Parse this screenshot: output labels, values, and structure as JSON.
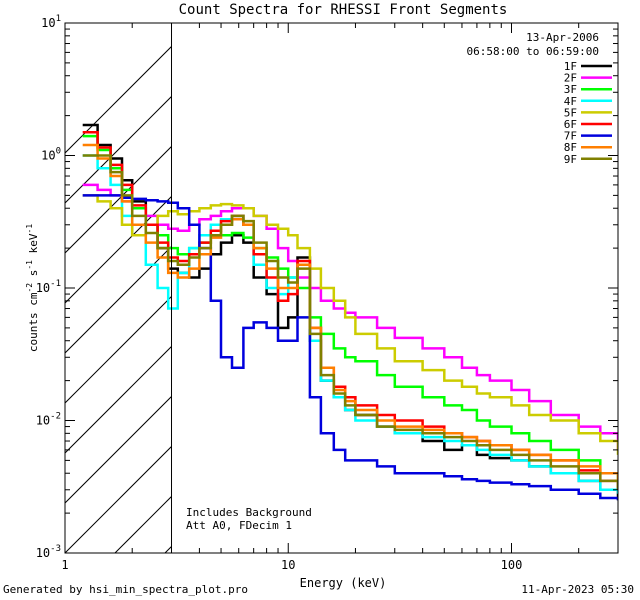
{
  "chart_data": {
    "type": "line",
    "step": true,
    "title": "Count Spectra for RHESSI Front Segments",
    "xlabel": "Energy (keV)",
    "ylabel_parts": [
      "counts cm",
      "-2",
      " s",
      "-1",
      " keV",
      "-1"
    ],
    "xscale": "log",
    "yscale": "log",
    "xlim": [
      1,
      300
    ],
    "ylim": [
      0.001,
      10
    ],
    "x_ticks": [
      {
        "value": 1,
        "label": "1"
      },
      {
        "value": 10,
        "label": "10"
      },
      {
        "value": 100,
        "label": "100"
      }
    ],
    "y_ticks": [
      {
        "value": 0.001,
        "base": "10",
        "exp": "-3"
      },
      {
        "value": 0.01,
        "base": "10",
        "exp": "-2"
      },
      {
        "value": 0.1,
        "base": "10",
        "exp": "-1"
      },
      {
        "value": 1,
        "base": "10",
        "exp": "0"
      },
      {
        "value": 10,
        "base": "10",
        "exp": "1"
      }
    ],
    "date": "13-Apr-2006",
    "time_range": "06:58:00 to 06:59:00",
    "excluded_region_kev": [
      1,
      3
    ],
    "annotations": [
      "Includes Background",
      "Att A0, FDecim 1"
    ],
    "series": [
      {
        "name": "1F",
        "color": "#000000",
        "x": [
          1.2,
          1.4,
          1.6,
          1.8,
          2.0,
          2.3,
          2.6,
          2.9,
          3.2,
          3.6,
          4.0,
          4.5,
          5.0,
          5.6,
          6.3,
          7.0,
          8.0,
          9.0,
          10.0,
          11.0,
          12.5,
          14,
          16,
          18,
          20,
          25,
          30,
          40,
          50,
          60,
          70,
          80,
          100,
          120,
          150,
          200,
          250,
          300
        ],
        "y": [
          1.7,
          1.2,
          0.95,
          0.65,
          0.45,
          0.3,
          0.2,
          0.14,
          0.13,
          0.12,
          0.14,
          0.18,
          0.22,
          0.25,
          0.22,
          0.12,
          0.09,
          0.05,
          0.06,
          0.17,
          0.04,
          0.02,
          0.015,
          0.012,
          0.011,
          0.009,
          0.008,
          0.007,
          0.006,
          0.0065,
          0.0055,
          0.0052,
          0.005,
          0.0045,
          0.004,
          0.0035,
          0.003,
          0.0025
        ]
      },
      {
        "name": "2F",
        "color": "#ff00ff",
        "x": [
          1.2,
          1.4,
          1.6,
          1.8,
          2.0,
          2.3,
          2.6,
          2.9,
          3.2,
          3.6,
          4.0,
          4.5,
          5.0,
          5.6,
          6.3,
          7.0,
          8.0,
          9.0,
          10.0,
          11.0,
          12.5,
          14,
          16,
          18,
          20,
          25,
          30,
          40,
          50,
          60,
          70,
          80,
          100,
          120,
          150,
          200,
          250,
          300
        ],
        "y": [
          0.6,
          0.55,
          0.5,
          0.45,
          0.4,
          0.35,
          0.3,
          0.28,
          0.27,
          0.3,
          0.33,
          0.35,
          0.38,
          0.4,
          0.4,
          0.35,
          0.28,
          0.2,
          0.16,
          0.12,
          0.1,
          0.08,
          0.07,
          0.065,
          0.06,
          0.05,
          0.042,
          0.035,
          0.03,
          0.025,
          0.022,
          0.02,
          0.017,
          0.014,
          0.011,
          0.009,
          0.008,
          0.006
        ]
      },
      {
        "name": "3F",
        "color": "#00ff00",
        "x": [
          1.2,
          1.4,
          1.6,
          1.8,
          2.0,
          2.3,
          2.6,
          2.9,
          3.2,
          3.6,
          4.0,
          4.5,
          5.0,
          5.6,
          6.3,
          7.0,
          8.0,
          9.0,
          10.0,
          11.0,
          12.5,
          14,
          16,
          18,
          20,
          25,
          30,
          40,
          50,
          60,
          70,
          80,
          100,
          120,
          150,
          200,
          250,
          300
        ],
        "y": [
          1.4,
          1.1,
          0.8,
          0.55,
          0.4,
          0.3,
          0.25,
          0.2,
          0.18,
          0.2,
          0.22,
          0.25,
          0.25,
          0.26,
          0.24,
          0.2,
          0.17,
          0.14,
          0.12,
          0.1,
          0.06,
          0.045,
          0.035,
          0.03,
          0.028,
          0.022,
          0.018,
          0.015,
          0.013,
          0.012,
          0.01,
          0.009,
          0.008,
          0.007,
          0.006,
          0.005,
          0.004,
          0.003
        ]
      },
      {
        "name": "4F",
        "color": "#00ffff",
        "x": [
          1.2,
          1.4,
          1.6,
          1.8,
          2.0,
          2.3,
          2.6,
          2.9,
          3.2,
          3.6,
          4.0,
          4.5,
          5.0,
          5.6,
          6.3,
          7.0,
          8.0,
          9.0,
          10.0,
          11.0,
          12.5,
          14,
          16,
          18,
          20,
          25,
          30,
          40,
          50,
          60,
          70,
          80,
          100,
          120,
          150,
          200,
          250,
          300
        ],
        "y": [
          1.0,
          0.8,
          0.6,
          0.35,
          0.25,
          0.15,
          0.1,
          0.07,
          0.13,
          0.2,
          0.25,
          0.3,
          0.33,
          0.35,
          0.3,
          0.15,
          0.1,
          0.09,
          0.12,
          0.15,
          0.04,
          0.02,
          0.015,
          0.012,
          0.01,
          0.009,
          0.008,
          0.0075,
          0.007,
          0.0065,
          0.006,
          0.0055,
          0.005,
          0.0045,
          0.004,
          0.0035,
          0.003,
          0.0028
        ]
      },
      {
        "name": "5F",
        "color": "#cccc00",
        "x": [
          1.2,
          1.4,
          1.6,
          1.8,
          2.0,
          2.3,
          2.6,
          2.9,
          3.2,
          3.6,
          4.0,
          4.5,
          5.0,
          5.6,
          6.3,
          7.0,
          8.0,
          9.0,
          10.0,
          11.0,
          12.5,
          14,
          16,
          18,
          20,
          25,
          30,
          40,
          50,
          60,
          70,
          80,
          100,
          120,
          150,
          200,
          250,
          300
        ],
        "y": [
          0.5,
          0.45,
          0.4,
          0.3,
          0.25,
          0.3,
          0.35,
          0.38,
          0.36,
          0.38,
          0.4,
          0.42,
          0.43,
          0.42,
          0.4,
          0.35,
          0.3,
          0.28,
          0.25,
          0.2,
          0.14,
          0.1,
          0.08,
          0.06,
          0.045,
          0.035,
          0.028,
          0.024,
          0.02,
          0.018,
          0.016,
          0.015,
          0.013,
          0.011,
          0.01,
          0.008,
          0.007,
          0.0055
        ]
      },
      {
        "name": "6F",
        "color": "#ff0000",
        "x": [
          1.2,
          1.4,
          1.6,
          1.8,
          2.0,
          2.3,
          2.6,
          2.9,
          3.2,
          3.6,
          4.0,
          4.5,
          5.0,
          5.6,
          6.3,
          7.0,
          8.0,
          9.0,
          10.0,
          11.0,
          12.5,
          14,
          16,
          18,
          20,
          25,
          30,
          40,
          50,
          60,
          70,
          80,
          100,
          120,
          150,
          200,
          250,
          300
        ],
        "y": [
          1.5,
          1.15,
          0.85,
          0.6,
          0.42,
          0.3,
          0.22,
          0.17,
          0.16,
          0.18,
          0.22,
          0.27,
          0.32,
          0.35,
          0.3,
          0.18,
          0.12,
          0.08,
          0.09,
          0.16,
          0.05,
          0.025,
          0.018,
          0.015,
          0.013,
          0.011,
          0.01,
          0.009,
          0.008,
          0.0075,
          0.007,
          0.0065,
          0.006,
          0.0055,
          0.005,
          0.0042,
          0.0035,
          0.003
        ]
      },
      {
        "name": "7F",
        "color": "#0000dd",
        "x": [
          1.2,
          1.4,
          1.6,
          1.8,
          2.0,
          2.3,
          2.6,
          2.9,
          3.2,
          3.6,
          4.0,
          4.5,
          5.0,
          5.6,
          6.3,
          7.0,
          8.0,
          9.0,
          10.0,
          11.0,
          12.5,
          14,
          16,
          18,
          20,
          25,
          30,
          40,
          50,
          60,
          70,
          80,
          100,
          120,
          150,
          200,
          250,
          300
        ],
        "y": [
          0.5,
          0.5,
          0.5,
          0.48,
          0.47,
          0.46,
          0.45,
          0.44,
          0.4,
          0.3,
          0.2,
          0.08,
          0.03,
          0.025,
          0.05,
          0.055,
          0.05,
          0.04,
          0.04,
          0.06,
          0.015,
          0.008,
          0.006,
          0.005,
          0.005,
          0.0045,
          0.004,
          0.004,
          0.0038,
          0.0036,
          0.0035,
          0.0034,
          0.0033,
          0.0032,
          0.003,
          0.0028,
          0.0026,
          0.0025
        ]
      },
      {
        "name": "8F",
        "color": "#ff7f00",
        "x": [
          1.2,
          1.4,
          1.6,
          1.8,
          2.0,
          2.3,
          2.6,
          2.9,
          3.2,
          3.6,
          4.0,
          4.5,
          5.0,
          5.6,
          6.3,
          7.0,
          8.0,
          9.0,
          10.0,
          11.0,
          12.5,
          14,
          16,
          18,
          20,
          25,
          30,
          40,
          50,
          60,
          70,
          80,
          100,
          120,
          150,
          200,
          250,
          300
        ],
        "y": [
          1.2,
          0.95,
          0.7,
          0.45,
          0.3,
          0.22,
          0.17,
          0.13,
          0.12,
          0.14,
          0.18,
          0.24,
          0.3,
          0.33,
          0.3,
          0.2,
          0.14,
          0.1,
          0.1,
          0.15,
          0.05,
          0.025,
          0.017,
          0.014,
          0.012,
          0.01,
          0.009,
          0.0085,
          0.008,
          0.0075,
          0.007,
          0.0065,
          0.006,
          0.0055,
          0.005,
          0.0045,
          0.004,
          0.0035
        ]
      },
      {
        "name": "9F",
        "color": "#808000",
        "x": [
          1.2,
          1.4,
          1.6,
          1.8,
          2.0,
          2.3,
          2.6,
          2.9,
          3.2,
          3.6,
          4.0,
          4.5,
          5.0,
          5.6,
          6.3,
          7.0,
          8.0,
          9.0,
          10.0,
          11.0,
          12.5,
          14,
          16,
          18,
          20,
          25,
          30,
          40,
          50,
          60,
          70,
          80,
          100,
          120,
          150,
          200,
          250,
          300
        ],
        "y": [
          1.0,
          1.0,
          0.75,
          0.5,
          0.35,
          0.26,
          0.2,
          0.16,
          0.15,
          0.17,
          0.2,
          0.25,
          0.3,
          0.35,
          0.32,
          0.22,
          0.16,
          0.12,
          0.11,
          0.14,
          0.045,
          0.022,
          0.016,
          0.013,
          0.011,
          0.009,
          0.0085,
          0.008,
          0.0075,
          0.007,
          0.0065,
          0.006,
          0.0055,
          0.005,
          0.0045,
          0.004,
          0.0035,
          0.003
        ]
      }
    ]
  },
  "footer": {
    "generated": "Generated by hsi_min_spectra_plot.pro",
    "timestamp": "11-Apr-2023 05:30"
  }
}
